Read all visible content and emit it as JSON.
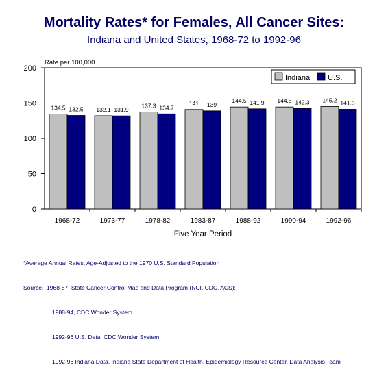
{
  "chart_data": {
    "type": "bar",
    "title": "Mortality Rates* for Females, All Cancer Sites:",
    "subtitle": "Indiana and United States, 1968-72 to 1992-96",
    "ylabel": "Rate per 100,000",
    "xlabel": "Five Year Period",
    "categories": [
      "1968-72",
      "1973-77",
      "1978-82",
      "1983-87",
      "1988-92",
      "1990-94",
      "1992-96"
    ],
    "series": [
      {
        "name": "Indiana",
        "color": "#c0c0c0",
        "values": [
          134.5,
          132.1,
          137.3,
          141,
          144.5,
          144.5,
          145.2
        ]
      },
      {
        "name": "U.S.",
        "color": "#000080",
        "values": [
          132.5,
          131.9,
          134.7,
          139,
          141.9,
          142.3,
          141.3
        ]
      }
    ],
    "ylim": [
      0,
      200
    ],
    "yticks": [
      0,
      50,
      100,
      150,
      200
    ],
    "legend": "top-right",
    "grid": false
  },
  "notes": {
    "line1": "*Average Annual Rates, Age-Adjusted to the 1970 U.S. Standard Population",
    "line2": "Source:  1968-87, State Cancer Control Map and Data Program (NCI, CDC, ACS);",
    "line3": "1988-94, CDC Wonder System",
    "line4": "1992-96 U.S. Data, CDC Wonder System",
    "line5": "1992-96 Indiana Data, Indiana State Department of Health, Epidemiology Resource Center, Data Analysis Team"
  }
}
